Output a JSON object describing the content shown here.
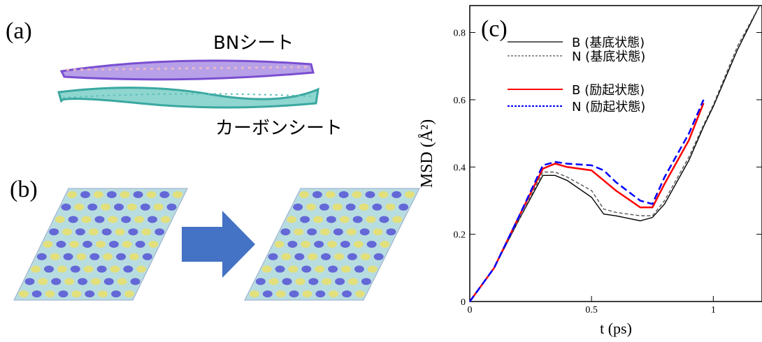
{
  "panels": {
    "a": {
      "label": "(a)",
      "top_sheet": "BNシート",
      "bottom_sheet": "カーボンシート"
    },
    "b": {
      "label": "(b)"
    }
  },
  "chart_data": {
    "type": "line",
    "title": "(c)",
    "x_label": "t (ps)",
    "y_label": "MSD (Å²)",
    "x": [
      0,
      0.1,
      0.2,
      0.3,
      0.35,
      0.4,
      0.5,
      0.55,
      0.6,
      0.7,
      0.75,
      0.8,
      0.9,
      0.96,
      1.0,
      1.1,
      1.19
    ],
    "series": [
      {
        "name": "B (基底状態)",
        "color": "#000000",
        "dash": false,
        "values": [
          0,
          0.1,
          0.24,
          0.375,
          0.375,
          0.36,
          0.31,
          0.26,
          0.255,
          0.24,
          0.25,
          0.29,
          0.42,
          0.52,
          0.58,
          0.75,
          0.88
        ]
      },
      {
        "name": "N (基底状態)",
        "color": "#555555",
        "dash": true,
        "values": [
          0,
          0.1,
          0.24,
          0.385,
          0.385,
          0.37,
          0.33,
          0.275,
          0.265,
          0.255,
          0.255,
          0.3,
          0.43,
          0.525,
          0.585,
          0.76,
          0.88
        ]
      },
      {
        "name": "B (励起状態)",
        "color": "#ff0000",
        "dash": false,
        "values": [
          0,
          0.1,
          0.25,
          0.395,
          0.41,
          0.4,
          0.39,
          0.36,
          0.33,
          0.28,
          0.28,
          0.35,
          0.48,
          0.59,
          null,
          null,
          null
        ]
      },
      {
        "name": "N (励起状態)",
        "color": "#0000ff",
        "dash": true,
        "values": [
          0,
          0.1,
          0.25,
          0.405,
          0.415,
          0.41,
          0.405,
          0.39,
          0.355,
          0.3,
          0.29,
          0.37,
          0.5,
          0.6,
          null,
          null,
          null
        ]
      }
    ],
    "xlim": [
      0,
      1.2
    ],
    "ylim": [
      0,
      0.88
    ],
    "xticks": [
      0,
      0.5,
      1
    ],
    "yticks": [
      0,
      0.2,
      0.4,
      0.6,
      0.8
    ],
    "legend": "top-left"
  }
}
